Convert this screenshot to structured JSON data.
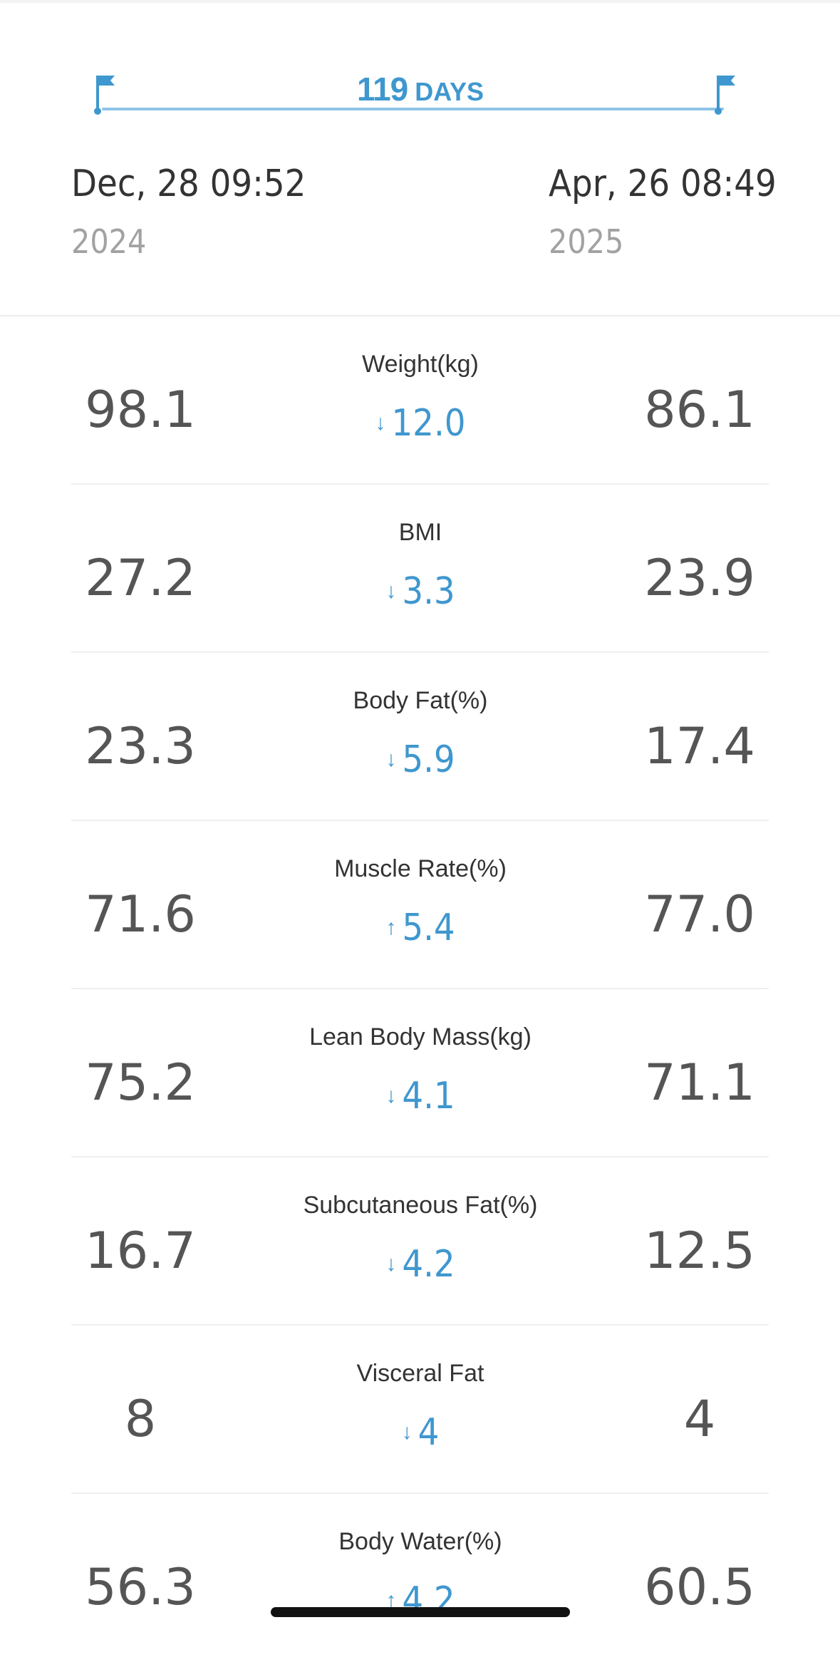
{
  "header": {
    "days_value": "119",
    "days_unit": "DAYS",
    "start": {
      "date": "Dec, 28 09:52",
      "year": "2024"
    },
    "end": {
      "date": "Apr, 26 08:49",
      "year": "2025"
    },
    "icons": {
      "start_flag": "flag-icon",
      "end_flag": "flag-icon"
    }
  },
  "colors": {
    "accent": "#3f97cf",
    "range_line": "#8ec4e6",
    "value_text": "#555555"
  },
  "metrics": [
    {
      "label": "Weight(kg)",
      "start": "98.1",
      "end": "86.1",
      "direction": "down",
      "arrow": "↓",
      "delta": "12.0"
    },
    {
      "label": "BMI",
      "start": "27.2",
      "end": "23.9",
      "direction": "down",
      "arrow": "↓",
      "delta": "3.3"
    },
    {
      "label": "Body Fat(%)",
      "start": "23.3",
      "end": "17.4",
      "direction": "down",
      "arrow": "↓",
      "delta": "5.9"
    },
    {
      "label": "Muscle Rate(%)",
      "start": "71.6",
      "end": "77.0",
      "direction": "up",
      "arrow": "↑",
      "delta": "5.4"
    },
    {
      "label": "Lean Body Mass(kg)",
      "start": "75.2",
      "end": "71.1",
      "direction": "down",
      "arrow": "↓",
      "delta": "4.1"
    },
    {
      "label": "Subcutaneous Fat(%)",
      "start": "16.7",
      "end": "12.5",
      "direction": "down",
      "arrow": "↓",
      "delta": "4.2"
    },
    {
      "label": "Visceral Fat",
      "start": "8",
      "end": "4",
      "direction": "down",
      "arrow": "↓",
      "delta": "4"
    },
    {
      "label": "Body Water(%)",
      "start": "56.3",
      "end": "60.5",
      "direction": "up",
      "arrow": "↑",
      "delta": "4.2"
    }
  ]
}
